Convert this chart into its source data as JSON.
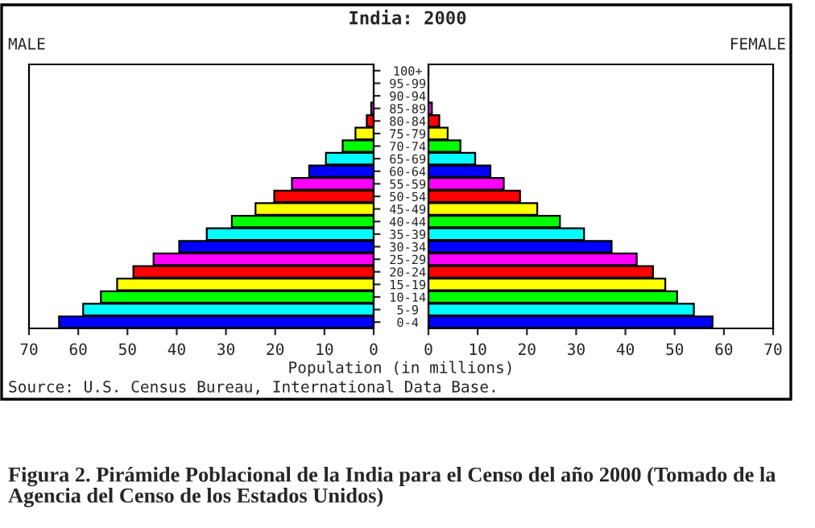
{
  "chart_data": [
    {
      "type": "bar",
      "orientation": "horizontal",
      "title": "India: 2000",
      "subtitle": "MALE",
      "xlabel": "Population (in millions)",
      "categories": [
        "100+",
        "95-99",
        "90-94",
        "85-89",
        "80-84",
        "75-79",
        "70-74",
        "65-69",
        "60-64",
        "55-59",
        "50-54",
        "45-49",
        "40-44",
        "35-39",
        "30-34",
        "25-29",
        "20-24",
        "15-19",
        "10-14",
        "5-9",
        "0-4"
      ],
      "values": [
        0.0,
        null,
        null,
        0.5,
        1.4,
        3.7,
        6.3,
        9.7,
        13.1,
        16.6,
        20.2,
        24.0,
        28.8,
        33.9,
        39.5,
        44.7,
        48.8,
        52.1,
        55.4,
        59.0,
        63.9
      ],
      "colors": [
        "#00ff00",
        "#00ffff",
        "#0000ff",
        "#ff00ff",
        "#ff0000",
        "#ffff00",
        "#00ff00",
        "#00ffff",
        "#0000ff",
        "#ff00ff",
        "#ff0000",
        "#ffff00",
        "#00ff00",
        "#00ffff",
        "#0000ff",
        "#ff00ff",
        "#ff0000",
        "#ffff00",
        "#00ff00",
        "#00ffff",
        "#0000ff"
      ],
      "xlim": [
        70,
        0
      ],
      "xticks": [
        70,
        60,
        50,
        40,
        30,
        20,
        10,
        0
      ],
      "annotations": [
        "Source: U.S. Census Bureau, International Data Base."
      ]
    },
    {
      "type": "bar",
      "orientation": "horizontal",
      "subtitle": "FEMALE",
      "categories": [
        null,
        null,
        null,
        null,
        null,
        null,
        null,
        null,
        null,
        null,
        null,
        null,
        null,
        null,
        null,
        null,
        null,
        null,
        null,
        null,
        null
      ],
      "values": [
        0.0,
        null,
        null,
        0.7,
        2.2,
        3.9,
        6.5,
        9.5,
        12.6,
        15.3,
        18.6,
        22.1,
        26.7,
        31.6,
        37.2,
        42.3,
        45.6,
        48.1,
        50.5,
        53.9,
        57.7
      ],
      "colors": [
        "#00ff00",
        "#00ffff",
        "#0000ff",
        "#ff00ff",
        "#ff0000",
        "#ffff00",
        "#00ff00",
        "#00ffff",
        "#0000ff",
        "#ff00ff",
        "#ff0000",
        "#ffff00",
        "#00ff00",
        "#00ffff",
        "#0000ff",
        "#ff00ff",
        "#ff0000",
        "#ffff00",
        "#00ff00",
        "#00ffff",
        "#0000ff"
      ],
      "xlim": [
        0,
        70
      ],
      "xticks": [
        0,
        10,
        20,
        30,
        40,
        50,
        60,
        70
      ],
      "annotations": [
        "Figura 2. Pirámide Poblacional de la India para el Censo del año 2000 (Tomado de la Agencia del Censo de los Estados Unidos)"
      ]
    }
  ]
}
